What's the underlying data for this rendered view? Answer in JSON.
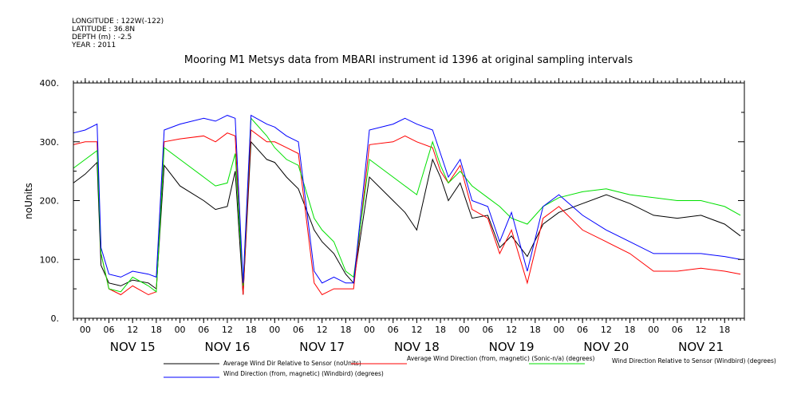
{
  "header": {
    "longitude": "LONGITUDE : 122W(-122)",
    "latitude": "LATITUDE : 36.8N",
    "depth": "DEPTH (m) : -2.5",
    "year": "YEAR : 2011"
  },
  "colors": {
    "black": "#000000",
    "red": "#ff0000",
    "green": "#00e000",
    "blue": "#0000ff"
  },
  "chart_data": {
    "type": "line",
    "title": "Mooring M1 Metsys data from MBARI instrument id 1396 at original sampling intervals",
    "xlabel": "",
    "ylabel": "noUnits",
    "ylim": [
      0,
      400
    ],
    "y_ticks": [
      "0.",
      "100.",
      "200.",
      "300.",
      "400."
    ],
    "x_hours_ticks": [
      "00",
      "06",
      "12",
      "18",
      "00",
      "06",
      "12",
      "18",
      "00",
      "06",
      "12",
      "18",
      "00",
      "06",
      "12",
      "18",
      "00",
      "06",
      "12",
      "18",
      "00",
      "06",
      "12",
      "18",
      "00",
      "06",
      "12",
      "18"
    ],
    "x_day_ticks": [
      "NOV 15",
      "NOV 16",
      "NOV 17",
      "NOV 18",
      "NOV 19",
      "NOV 20",
      "NOV 21"
    ],
    "x_range_days": [
      "2011-11-14 21:00",
      "2011-11-21 23:00"
    ],
    "grid": false,
    "legend": "bottom",
    "series": [
      {
        "name": "Average Wind Dir Relative to Sensor (noUnits)",
        "color": "#000000",
        "x": [
          "2011-11-14 21:00",
          "2011-11-15 00:00",
          "2011-11-15 03:00",
          "2011-11-15 04:00",
          "2011-11-15 06:00",
          "2011-11-15 09:00",
          "2011-11-15 12:00",
          "2011-11-15 16:00",
          "2011-11-15 18:00",
          "2011-11-15 20:00",
          "2011-11-16 00:00",
          "2011-11-16 06:00",
          "2011-11-16 09:00",
          "2011-11-16 12:00",
          "2011-11-16 14:00",
          "2011-11-16 16:00",
          "2011-11-16 18:00",
          "2011-11-16 22:00",
          "2011-11-17 00:00",
          "2011-11-17 03:00",
          "2011-11-17 06:00",
          "2011-11-17 10:00",
          "2011-11-17 12:00",
          "2011-11-17 15:00",
          "2011-11-17 18:00",
          "2011-11-17 20:00",
          "2011-11-18 00:00",
          "2011-11-18 06:00",
          "2011-11-18 09:00",
          "2011-11-18 12:00",
          "2011-11-18 16:00",
          "2011-11-18 18:00",
          "2011-11-18 20:00",
          "2011-11-18 23:00",
          "2011-11-19 02:00",
          "2011-11-19 06:00",
          "2011-11-19 09:00",
          "2011-11-19 12:00",
          "2011-11-19 16:00",
          "2011-11-19 20:00",
          "2011-11-20 00:00",
          "2011-11-20 06:00",
          "2011-11-20 12:00",
          "2011-11-20 18:00",
          "2011-11-21 00:00",
          "2011-11-21 06:00",
          "2011-11-21 12:00",
          "2011-11-21 18:00",
          "2011-11-21 22:00"
        ],
        "y": [
          230,
          245,
          265,
          90,
          60,
          55,
          65,
          60,
          50,
          260,
          225,
          200,
          185,
          190,
          250,
          40,
          300,
          270,
          265,
          240,
          220,
          150,
          130,
          110,
          75,
          60,
          240,
          200,
          180,
          150,
          270,
          240,
          200,
          230,
          170,
          175,
          120,
          140,
          105,
          160,
          180,
          195,
          210,
          195,
          175,
          170,
          175,
          160,
          140
        ]
      },
      {
        "name": "Average Wind Direction (from, magnetic) (Sonic-n/a) (degrees)",
        "color": "#ff0000",
        "x": [
          "2011-11-14 21:00",
          "2011-11-15 00:00",
          "2011-11-15 03:00",
          "2011-11-15 04:00",
          "2011-11-15 06:00",
          "2011-11-15 09:00",
          "2011-11-15 12:00",
          "2011-11-15 16:00",
          "2011-11-15 18:00",
          "2011-11-15 20:00",
          "2011-11-16 00:00",
          "2011-11-16 06:00",
          "2011-11-16 09:00",
          "2011-11-16 12:00",
          "2011-11-16 14:00",
          "2011-11-16 16:00",
          "2011-11-16 18:00",
          "2011-11-16 22:00",
          "2011-11-17 00:00",
          "2011-11-17 03:00",
          "2011-11-17 06:00",
          "2011-11-17 10:00",
          "2011-11-17 12:00",
          "2011-11-17 15:00",
          "2011-11-17 18:00",
          "2011-11-17 20:00",
          "2011-11-18 00:00",
          "2011-11-18 06:00",
          "2011-11-18 09:00",
          "2011-11-18 12:00",
          "2011-11-18 16:00",
          "2011-11-18 18:00",
          "2011-11-18 20:00",
          "2011-11-18 23:00",
          "2011-11-19 02:00",
          "2011-11-19 06:00",
          "2011-11-19 09:00",
          "2011-11-19 12:00",
          "2011-11-19 16:00",
          "2011-11-19 20:00",
          "2011-11-20 00:00",
          "2011-11-20 06:00",
          "2011-11-20 12:00",
          "2011-11-20 18:00",
          "2011-11-21 00:00",
          "2011-11-21 06:00",
          "2011-11-21 12:00",
          "2011-11-21 18:00",
          "2011-11-21 22:00"
        ],
        "y": [
          295,
          300,
          300,
          110,
          50,
          40,
          55,
          40,
          45,
          300,
          305,
          310,
          300,
          315,
          310,
          40,
          320,
          300,
          300,
          290,
          280,
          60,
          40,
          50,
          50,
          50,
          295,
          300,
          310,
          300,
          290,
          250,
          230,
          260,
          185,
          170,
          110,
          150,
          60,
          170,
          190,
          150,
          130,
          110,
          80,
          80,
          85,
          80,
          75
        ]
      },
      {
        "name": "Wind Direction Relative to Sensor (Windbird) (degrees)",
        "color": "#00e000",
        "x": [
          "2011-11-14 21:00",
          "2011-11-15 00:00",
          "2011-11-15 03:00",
          "2011-11-15 04:00",
          "2011-11-15 06:00",
          "2011-11-15 09:00",
          "2011-11-15 12:00",
          "2011-11-15 16:00",
          "2011-11-15 18:00",
          "2011-11-15 20:00",
          "2011-11-16 00:00",
          "2011-11-16 06:00",
          "2011-11-16 09:00",
          "2011-11-16 12:00",
          "2011-11-16 14:00",
          "2011-11-16 16:00",
          "2011-11-16 18:00",
          "2011-11-16 22:00",
          "2011-11-17 00:00",
          "2011-11-17 03:00",
          "2011-11-17 06:00",
          "2011-11-17 10:00",
          "2011-11-17 12:00",
          "2011-11-17 15:00",
          "2011-11-17 18:00",
          "2011-11-17 20:00",
          "2011-11-18 00:00",
          "2011-11-18 06:00",
          "2011-11-18 09:00",
          "2011-11-18 12:00",
          "2011-11-18 16:00",
          "2011-11-18 18:00",
          "2011-11-18 20:00",
          "2011-11-18 23:00",
          "2011-11-19 02:00",
          "2011-11-19 06:00",
          "2011-11-19 09:00",
          "2011-11-19 12:00",
          "2011-11-19 16:00",
          "2011-11-19 20:00",
          "2011-11-20 00:00",
          "2011-11-20 06:00",
          "2011-11-20 12:00",
          "2011-11-20 18:00",
          "2011-11-21 00:00",
          "2011-11-21 06:00",
          "2011-11-21 12:00",
          "2011-11-21 18:00",
          "2011-11-21 22:00"
        ],
        "y": [
          255,
          270,
          285,
          110,
          50,
          45,
          70,
          55,
          45,
          290,
          270,
          240,
          225,
          230,
          280,
          55,
          340,
          310,
          290,
          270,
          260,
          170,
          150,
          130,
          80,
          70,
          270,
          240,
          225,
          210,
          300,
          260,
          230,
          250,
          225,
          205,
          190,
          170,
          160,
          190,
          205,
          215,
          220,
          210,
          205,
          200,
          200,
          190,
          175
        ]
      },
      {
        "name": "Wind Direction (from, magnetic) (Windbird) (degrees)",
        "color": "#0000ff",
        "x": [
          "2011-11-14 21:00",
          "2011-11-15 00:00",
          "2011-11-15 03:00",
          "2011-11-15 04:00",
          "2011-11-15 06:00",
          "2011-11-15 09:00",
          "2011-11-15 12:00",
          "2011-11-15 16:00",
          "2011-11-15 18:00",
          "2011-11-15 20:00",
          "2011-11-16 00:00",
          "2011-11-16 06:00",
          "2011-11-16 09:00",
          "2011-11-16 12:00",
          "2011-11-16 14:00",
          "2011-11-16 16:00",
          "2011-11-16 18:00",
          "2011-11-16 22:00",
          "2011-11-17 00:00",
          "2011-11-17 03:00",
          "2011-11-17 06:00",
          "2011-11-17 10:00",
          "2011-11-17 12:00",
          "2011-11-17 15:00",
          "2011-11-17 18:00",
          "2011-11-17 20:00",
          "2011-11-18 00:00",
          "2011-11-18 06:00",
          "2011-11-18 09:00",
          "2011-11-18 12:00",
          "2011-11-18 16:00",
          "2011-11-18 18:00",
          "2011-11-18 20:00",
          "2011-11-18 23:00",
          "2011-11-19 02:00",
          "2011-11-19 06:00",
          "2011-11-19 09:00",
          "2011-11-19 12:00",
          "2011-11-19 16:00",
          "2011-11-19 20:00",
          "2011-11-20 00:00",
          "2011-11-20 06:00",
          "2011-11-20 12:00",
          "2011-11-20 18:00",
          "2011-11-21 00:00",
          "2011-11-21 06:00",
          "2011-11-21 12:00",
          "2011-11-21 18:00",
          "2011-11-21 22:00"
        ],
        "y": [
          315,
          320,
          330,
          120,
          75,
          70,
          80,
          75,
          70,
          320,
          330,
          340,
          335,
          345,
          340,
          60,
          345,
          330,
          325,
          310,
          300,
          80,
          60,
          70,
          60,
          60,
          320,
          330,
          340,
          330,
          320,
          280,
          240,
          270,
          200,
          190,
          130,
          180,
          80,
          190,
          210,
          175,
          150,
          130,
          110,
          110,
          110,
          105,
          100
        ]
      }
    ]
  }
}
